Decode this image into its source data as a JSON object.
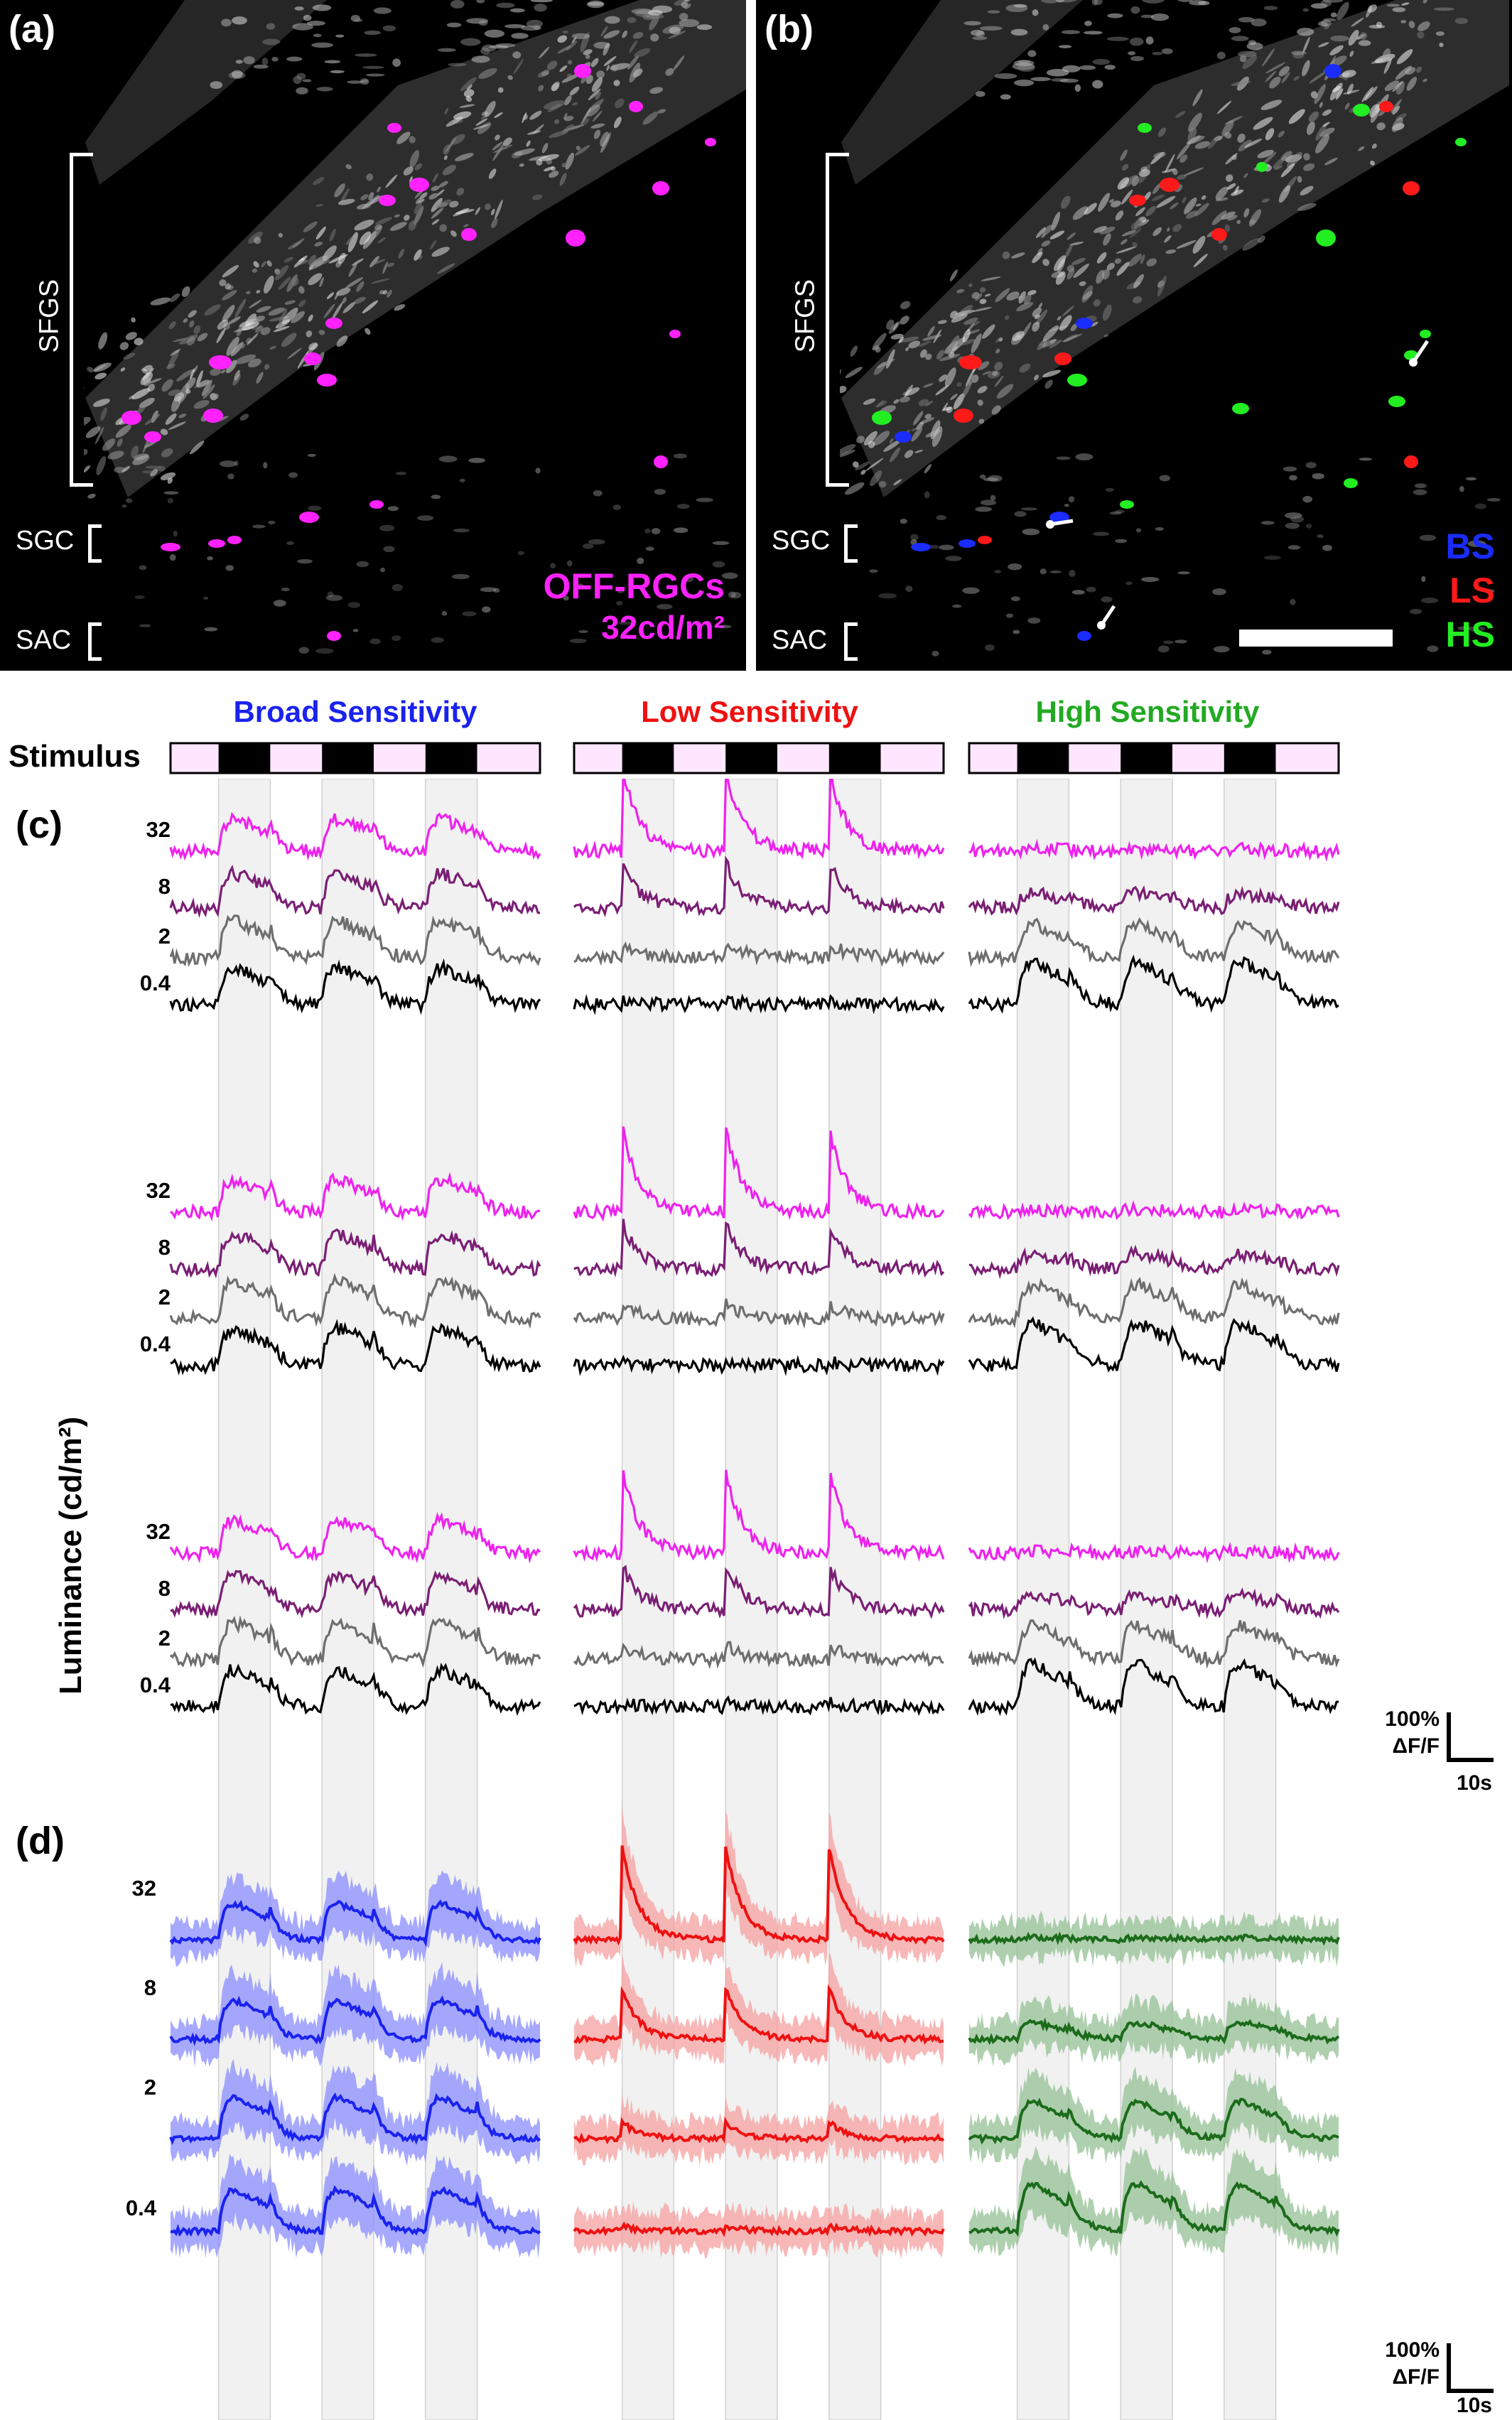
{
  "panel_a": {
    "label": "(a)",
    "regions": [
      "SFGS",
      "SGC",
      "SAC"
    ],
    "legend_line1": "OFF-RGCs",
    "legend_line2": "32cd/m²",
    "legend_color": "#ff22ff"
  },
  "panel_b": {
    "label": "(b)",
    "regions": [
      "SFGS",
      "SGC",
      "SAC"
    ],
    "legend": [
      {
        "text": "BS",
        "color": "#1a2cff"
      },
      {
        "text": "LS",
        "color": "#ff1a1a"
      },
      {
        "text": "HS",
        "color": "#22ee22"
      }
    ]
  },
  "panel_c": {
    "label": "(c)",
    "stimulus_label": "Stimulus",
    "y_axis_title": "Luminance (cd/m²)",
    "luminance_levels": [
      "32",
      "8",
      "2",
      "0.4"
    ],
    "trace_colors": [
      "#ee22ee",
      "#7a1f74",
      "#6e6e6e",
      "#000000"
    ],
    "scale_bar": {
      "y": "100%",
      "y2": "ΔF/F",
      "x": "10s"
    }
  },
  "panel_d": {
    "label": "(d)",
    "luminance_levels": [
      "32",
      "8",
      "2",
      "0.4"
    ],
    "scale_bar": {
      "y": "100%",
      "y2": "ΔF/F",
      "x": "10s"
    }
  },
  "columns": [
    {
      "title": "Broad Sensitivity",
      "color": "#1a22ee",
      "mean_color": "#1a22ee",
      "band_color": "#8a8cff"
    },
    {
      "title": "Low Sensitivity",
      "color": "#ee1111",
      "mean_color": "#ee1111",
      "band_color": "#f5a0a0"
    },
    {
      "title": "High Sensitivity",
      "color": "#22aa22",
      "mean_color": "#1b6b1b",
      "band_color": "#94c094"
    }
  ]
}
